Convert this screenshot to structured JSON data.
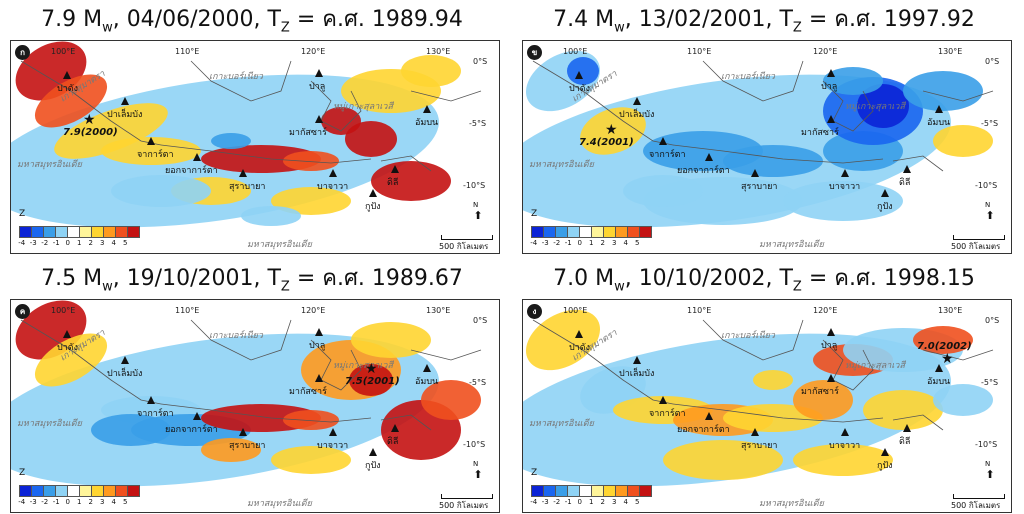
{
  "panels": [
    {
      "id": "a",
      "badge": "ก",
      "title_mag": "7.9 M",
      "title_sub": "w",
      "title_rest": ", 04/06/2000, T",
      "title_sub2": "Z",
      "title_tail": " = ค.ศ. 1989.94",
      "eq_label": "7.9(2000)"
    },
    {
      "id": "b",
      "badge": "ข",
      "title_mag": "7.4 M",
      "title_sub": "w",
      "title_rest": ", 13/02/2001, T",
      "title_sub2": "Z",
      "title_tail": " = ค.ศ. 1997.92",
      "eq_label": "7.4(2001)"
    },
    {
      "id": "c",
      "badge": "ค",
      "title_mag": "7.5 M",
      "title_sub": "w",
      "title_rest": ", 19/10/2001, T",
      "title_sub2": "Z",
      "title_tail": " = ค.ศ. 1989.67",
      "eq_label": "7.5(2001)"
    },
    {
      "id": "d",
      "badge": "ง",
      "title_mag": "7.0 M",
      "title_sub": "w",
      "title_rest": ", 10/10/2002, T",
      "title_sub2": "Z",
      "title_tail": " = ค.ศ. 1998.15",
      "eq_label": "7.0(2002)"
    }
  ],
  "map_labels": {
    "padang": "ปาดัง",
    "palembang": "ปาเล็มบัง",
    "jakarta": "จาการ์ตา",
    "yogyakarta": "ยอกจาการ์ตา",
    "surabaya": "สุราบายา",
    "banyuwangi": "บาจาวา",
    "kupang": "กูปัง",
    "dili": "ดิลี",
    "palu": "ปาลู",
    "makassar": "มากัสซาร์",
    "ambon": "อัมบน",
    "borneo": "เกาะบอร์เนียว",
    "sulawesi": "หมู่เกาะสุลาเวสี",
    "sumatra": "เกาะสุมาตรา",
    "indian_ocean": "มหาสมุทรอินเดีย"
  },
  "axis_labels": {
    "lon100": "100°E",
    "lon110": "110°E",
    "lon120": "120°E",
    "lon130": "130°E",
    "lat0": "0°S",
    "lat5": "-5°S",
    "lat10": "-10°S"
  },
  "legend": {
    "z_label": "Z",
    "ticks": [
      "-4",
      "-3",
      "-2",
      "-1",
      "0",
      "1",
      "2",
      "3",
      "4",
      "5"
    ],
    "colors": [
      "#0b23d6",
      "#1a66f0",
      "#3a9ee8",
      "#8fd3f5",
      "#ffffff",
      "#fff59a",
      "#ffd531",
      "#ff9a1f",
      "#f0501e",
      "#c41212"
    ]
  },
  "north_label": "N",
  "scale_label": "500 กิโลเมตร"
}
